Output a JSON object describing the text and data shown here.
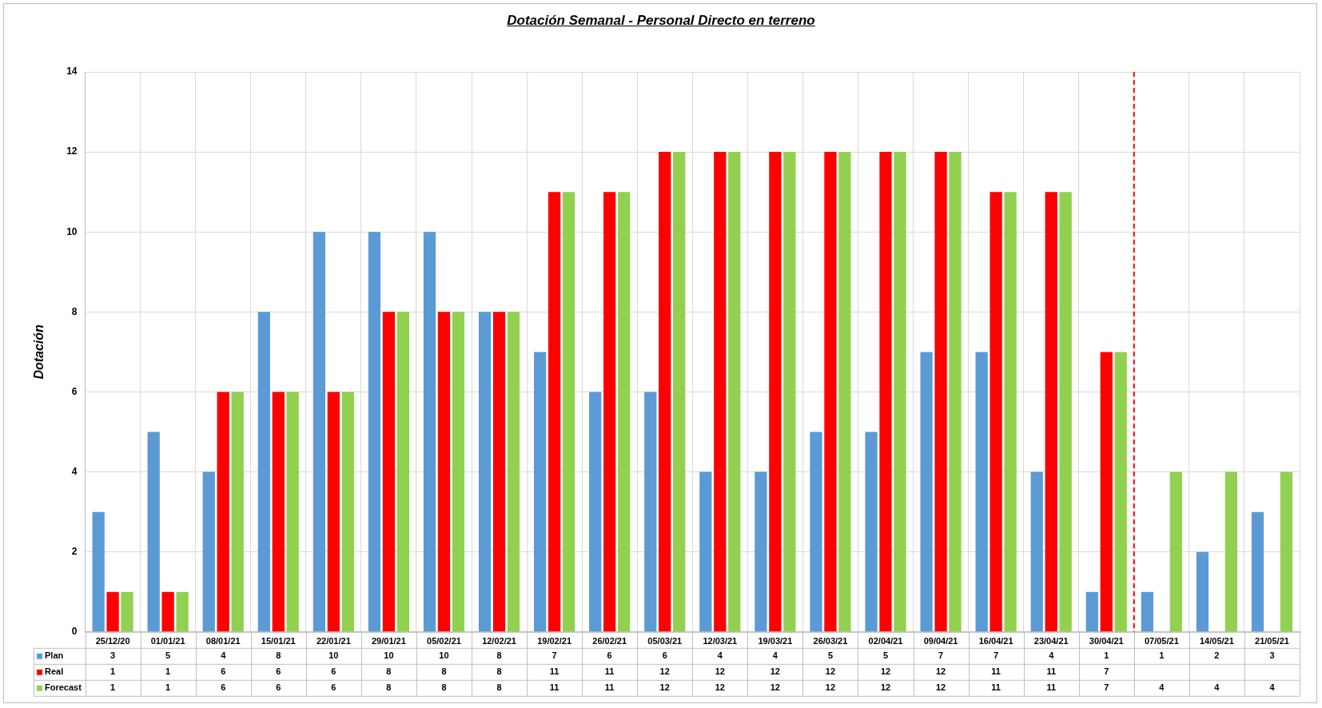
{
  "chart_data": {
    "type": "bar",
    "title": "Dotación Semanal - Personal Directo en terreno",
    "ylabel": "Dotación",
    "categories": [
      "25/12/20",
      "01/01/21",
      "08/01/21",
      "15/01/21",
      "22/01/21",
      "29/01/21",
      "05/02/21",
      "12/02/21",
      "19/02/21",
      "26/02/21",
      "05/03/21",
      "12/03/21",
      "19/03/21",
      "26/03/21",
      "02/04/21",
      "09/04/21",
      "16/04/21",
      "23/04/21",
      "30/04/21",
      "07/05/21",
      "14/05/21",
      "21/05/21"
    ],
    "series": [
      {
        "name": "Plan",
        "color": "#5b9bd5",
        "values": [
          3,
          5,
          4,
          8,
          10,
          10,
          10,
          8,
          7,
          6,
          6,
          4,
          4,
          5,
          5,
          7,
          7,
          4,
          1,
          1,
          2,
          3
        ]
      },
      {
        "name": "Real",
        "color": "#ff0000",
        "values": [
          1,
          1,
          6,
          6,
          6,
          8,
          8,
          8,
          11,
          11,
          12,
          12,
          12,
          12,
          12,
          12,
          11,
          11,
          7,
          null,
          null,
          null
        ]
      },
      {
        "name": "Forecast",
        "color": "#92d050",
        "values": [
          1,
          1,
          6,
          6,
          6,
          8,
          8,
          8,
          11,
          11,
          12,
          12,
          12,
          12,
          12,
          12,
          11,
          11,
          7,
          4,
          4,
          4
        ]
      }
    ],
    "ylim": [
      0,
      14
    ],
    "yticks": [
      0,
      2,
      4,
      6,
      8,
      10,
      12,
      14
    ],
    "grid": true,
    "legend": "bottom",
    "data_labels": true,
    "ref_lines": [
      {
        "axis": "x",
        "value": "30/04/21",
        "color": "#ff0000",
        "line_style": "dashed"
      }
    ]
  }
}
